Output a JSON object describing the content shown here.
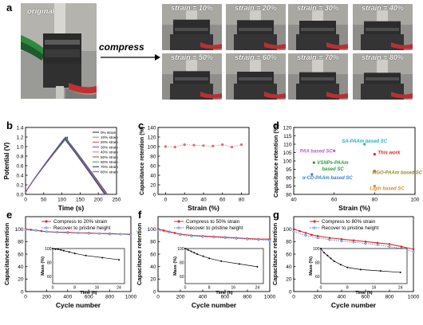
{
  "panels": {
    "a": "a",
    "b": "b",
    "c": "c",
    "d": "d",
    "e": "e",
    "f": "f",
    "g": "g"
  },
  "panel_a": {
    "original_label": "original",
    "arrow_label": "compress",
    "strain_labels": [
      "strain = 10%",
      "strain = 20%",
      "strain = 30%",
      "strain = 40%",
      "strain = 50%",
      "strain = 60%",
      "strain = 70%",
      "strain = 80%"
    ]
  },
  "watermark": "",
  "colors": {
    "red": "#e0252b",
    "blue": "#3b7fd1",
    "pink": "#e06a6a"
  },
  "chart_data": [
    {
      "id": "b",
      "type": "line",
      "xlabel": "Time (s)",
      "ylabel": "Potential (V)",
      "xlim": [
        0,
        250
      ],
      "ylim": [
        0.0,
        1.4
      ],
      "xticks": [
        0,
        50,
        100,
        150,
        200,
        250
      ],
      "yticks": [
        0.0,
        0.2,
        0.4,
        0.6,
        0.8,
        1.0,
        1.2,
        1.4
      ],
      "legend_position": "top-right",
      "series": [
        {
          "name": "0% strain",
          "color": "#222222",
          "peak_t": 115,
          "end_t": 225
        },
        {
          "name": "10% strain",
          "color": "#888888",
          "peak_t": 114,
          "end_t": 224
        },
        {
          "name": "20% strain",
          "color": "#e34234",
          "peak_t": 113,
          "end_t": 223
        },
        {
          "name": "30% strain",
          "color": "#3b5bd6",
          "peak_t": 113,
          "end_t": 222
        },
        {
          "name": "40% strain",
          "color": "#e15db0",
          "peak_t": 112,
          "end_t": 221
        },
        {
          "name": "50% strain",
          "color": "#7a5a2a",
          "peak_t": 111,
          "end_t": 220
        },
        {
          "name": "60% strain",
          "color": "#2a9d3a",
          "peak_t": 112,
          "end_t": 219
        },
        {
          "name": "70% strain",
          "color": "#1a2a8a",
          "peak_t": 110,
          "end_t": 218
        },
        {
          "name": "80% strain",
          "color": "#8a4aa8",
          "peak_t": 109,
          "end_t": 217
        }
      ]
    },
    {
      "id": "c",
      "type": "scatter",
      "xlabel": "Strain (%)",
      "ylabel": "Capacitance retention (%)",
      "xlim": [
        -8,
        88
      ],
      "ylim": [
        0,
        140
      ],
      "xticks": [
        0,
        20,
        40,
        60,
        80
      ],
      "yticks": [
        0,
        20,
        40,
        60,
        80,
        100,
        120,
        140
      ],
      "color": "#e06a6a",
      "x": [
        0,
        10,
        20,
        30,
        40,
        50,
        60,
        70,
        80
      ],
      "y": [
        100,
        99,
        104,
        103,
        102,
        101,
        104,
        99,
        104
      ]
    },
    {
      "id": "d",
      "type": "scatter",
      "xlabel": "Strain (%)",
      "ylabel": "Capacitance retention (%)",
      "xlim": [
        40,
        100
      ],
      "ylim": [
        80,
        120
      ],
      "xticks": [
        40,
        60,
        80,
        100
      ],
      "yticks": [
        80,
        85,
        90,
        95,
        100,
        105,
        110,
        115,
        120
      ],
      "points": [
        {
          "x": 75,
          "y": 110,
          "label": "SA-PAAm based SC",
          "color": "#21b3c8"
        },
        {
          "x": 60,
          "y": 106,
          "label": "PAA based SC",
          "color": "#b05fd6"
        },
        {
          "x": 80,
          "y": 104,
          "label": "This work",
          "color": "#e0252b"
        },
        {
          "x": 50,
          "y": 99,
          "label": "VSNPs-PAAm based SC",
          "color": "#2a9d3a"
        },
        {
          "x": 80,
          "y": 94,
          "label": "MGO-PAAm based SC",
          "color": "#9b8a2a"
        },
        {
          "x": 49,
          "y": 92,
          "label": "α-CD-PAAm based SC",
          "color": "#3b7fd1"
        },
        {
          "x": 80,
          "y": 85,
          "label": "Ligin based SC",
          "color": "#e08a2a"
        }
      ]
    },
    {
      "id": "e",
      "type": "line",
      "xlabel": "Cycle number",
      "ylabel": "Capacitance retention",
      "xlim": [
        0,
        1000
      ],
      "ylim": [
        0,
        120
      ],
      "xticks": [
        0,
        200,
        400,
        600,
        800,
        1000
      ],
      "yticks": [
        0,
        20,
        40,
        60,
        80,
        100
      ],
      "legend_position": "top-right",
      "series": [
        {
          "name": "Compress to 20% strain",
          "color": "#e0252b",
          "x": [
            0,
            50,
            100,
            150,
            200,
            300,
            400,
            500,
            600,
            700,
            800,
            900,
            1000
          ],
          "y": [
            100,
            99,
            98,
            97,
            96,
            95,
            95,
            94,
            94,
            93,
            93,
            92,
            92
          ]
        },
        {
          "name": "Recover to pristine height",
          "color": "#3b7fd1",
          "x": [
            0,
            100,
            200,
            300,
            400,
            500,
            600,
            700,
            800,
            900,
            1000
          ],
          "y": [
            99,
            98,
            96,
            95,
            94,
            94,
            93,
            93,
            92,
            92,
            91
          ]
        }
      ],
      "inset": {
        "xlabel": "Time (h)",
        "ylabel": "Mass (%)",
        "xlim": [
          0,
          26
        ],
        "ylim": [
          50,
          100
        ],
        "xticks": [
          0,
          8,
          16,
          24
        ],
        "yticks": [
          60,
          80,
          100
        ],
        "x": [
          0,
          1,
          2,
          3,
          4,
          6,
          8,
          12,
          18,
          24
        ],
        "y": [
          100,
          99,
          99,
          98,
          97,
          95,
          93,
          90,
          87,
          84
        ]
      }
    },
    {
      "id": "f",
      "type": "line",
      "xlabel": "Cycle number",
      "ylabel": "Capacitance retention",
      "xlim": [
        0,
        1000
      ],
      "ylim": [
        0,
        120
      ],
      "xticks": [
        0,
        200,
        400,
        600,
        800,
        1000
      ],
      "yticks": [
        0,
        20,
        40,
        60,
        80,
        100
      ],
      "legend_position": "top-right",
      "series": [
        {
          "name": "Compress to 50% strain",
          "color": "#e0252b",
          "x": [
            0,
            50,
            100,
            150,
            200,
            300,
            400,
            500,
            600,
            700,
            800,
            900,
            1000
          ],
          "y": [
            100,
            98,
            96,
            94,
            92,
            90,
            89,
            88,
            87,
            86,
            85,
            84,
            84
          ]
        },
        {
          "name": "Recover to pristine height",
          "color": "#3b7fd1",
          "x": [
            0,
            100,
            200,
            300,
            400,
            500,
            600,
            700,
            800,
            900,
            1000
          ],
          "y": [
            98,
            95,
            91,
            89,
            88,
            87,
            86,
            85,
            84,
            83,
            82
          ]
        }
      ],
      "inset": {
        "xlabel": "Time (h)",
        "ylabel": "Mass (%)",
        "xlim": [
          0,
          26
        ],
        "ylim": [
          50,
          100
        ],
        "xticks": [
          0,
          8,
          16,
          24
        ],
        "yticks": [
          60,
          80,
          100
        ],
        "x": [
          0,
          1,
          2,
          3,
          4,
          6,
          8,
          12,
          18,
          24
        ],
        "y": [
          100,
          98,
          96,
          94,
          92,
          89,
          86,
          82,
          78,
          74
        ]
      }
    },
    {
      "id": "g",
      "type": "line",
      "xlabel": "Cycle number",
      "ylabel": "Capacitance retention",
      "xlim": [
        0,
        1000
      ],
      "ylim": [
        0,
        120
      ],
      "xticks": [
        0,
        200,
        400,
        600,
        800,
        1000
      ],
      "yticks": [
        0,
        20,
        40,
        60,
        80,
        100
      ],
      "legend_position": "top-right",
      "series": [
        {
          "name": "Compress to 80% strain",
          "color": "#e0252b",
          "x": [
            0,
            50,
            100,
            150,
            200,
            300,
            400,
            500,
            600,
            700,
            800,
            900,
            1000
          ],
          "y": [
            100,
            97,
            94,
            91,
            89,
            86,
            84,
            82,
            80,
            78,
            76,
            72,
            68
          ]
        },
        {
          "name": "Recover to pristine height",
          "color": "#3b7fd1",
          "x": [
            0,
            100,
            200,
            300,
            400,
            500,
            600,
            700,
            800,
            900,
            1000
          ],
          "y": [
            96,
            90,
            86,
            83,
            81,
            79,
            77,
            75,
            72,
            69,
            64
          ]
        }
      ],
      "inset": {
        "xlabel": "Time (h)",
        "ylabel": "Mass (%)",
        "xlim": [
          0,
          26
        ],
        "ylim": [
          50,
          100
        ],
        "xticks": [
          0,
          8,
          16,
          24
        ],
        "yticks": [
          60,
          80,
          100
        ],
        "x": [
          0,
          1,
          2,
          3,
          4,
          6,
          8,
          12,
          18,
          24
        ],
        "y": [
          100,
          94,
          90,
          86,
          82,
          77,
          73,
          70,
          68,
          66
        ]
      }
    }
  ]
}
